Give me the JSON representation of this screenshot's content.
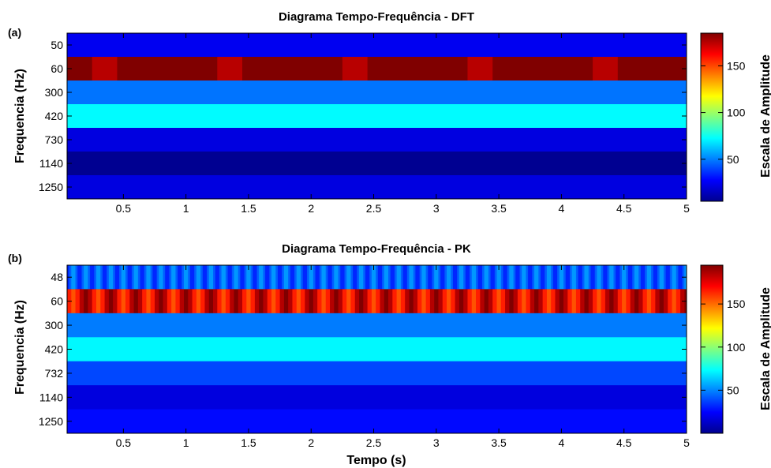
{
  "chart_data": [
    {
      "type": "heatmap",
      "panel_label": "(a)",
      "title": "Diagrama Tempo-Frequência - DFT",
      "xlabel": "",
      "ylabel": "Frequencia (Hz)",
      "colorbar_label": "Escala de Amplitude",
      "colormap": "jet",
      "xlim": [
        0.05,
        5
      ],
      "x_ticks": [
        "0.5",
        "1",
        "1.5",
        "2",
        "2.5",
        "3",
        "3.5",
        "4",
        "4.5",
        "5"
      ],
      "y_categories": [
        "50",
        "60",
        "300",
        "420",
        "730",
        "1140",
        "1250"
      ],
      "clim": [
        5,
        185
      ],
      "colorbar_ticks": [
        "50",
        "100",
        "150"
      ],
      "rows": [
        {
          "label": "50",
          "value": 25
        },
        {
          "label": "60",
          "value": 185,
          "alt_value": 175,
          "alt_intervals": [
            [
              0.25,
              0.45
            ],
            [
              1.25,
              1.45
            ],
            [
              2.25,
              2.45
            ],
            [
              3.25,
              3.45
            ],
            [
              4.25,
              4.45
            ]
          ]
        },
        {
          "label": "300",
          "value": 48
        },
        {
          "label": "420",
          "value": 72
        },
        {
          "label": "730",
          "value": 22
        },
        {
          "label": "1140",
          "value": 8
        },
        {
          "label": "1250",
          "value": 22
        }
      ]
    },
    {
      "type": "heatmap",
      "panel_label": "(b)",
      "title": "Diagrama Tempo-Frequência - PK",
      "xlabel": "Tempo (s)",
      "ylabel": "Frequencia (Hz)",
      "colorbar_label": "Escala de Amplitude",
      "colormap": "jet",
      "xlim": [
        0.05,
        5
      ],
      "x_ticks": [
        "0.5",
        "1",
        "1.5",
        "2",
        "2.5",
        "3",
        "3.5",
        "4",
        "4.5",
        "5"
      ],
      "y_categories": [
        "48",
        "60",
        "300",
        "420",
        "732",
        "1140",
        "1250"
      ],
      "clim": [
        0,
        195
      ],
      "colorbar_ticks": [
        "50",
        "100",
        "150"
      ],
      "rows": [
        {
          "label": "48",
          "value": 40,
          "modulation": {
            "period_s": 0.1,
            "min": 30,
            "max": 55
          }
        },
        {
          "label": "60",
          "value": 170,
          "modulation": {
            "period_s": 0.2,
            "min": 155,
            "max": 195
          }
        },
        {
          "label": "300",
          "value": 48
        },
        {
          "label": "420",
          "value": 72
        },
        {
          "label": "732",
          "value": 38
        },
        {
          "label": "1140",
          "value": 18
        },
        {
          "label": "1250",
          "value": 26
        }
      ]
    }
  ]
}
